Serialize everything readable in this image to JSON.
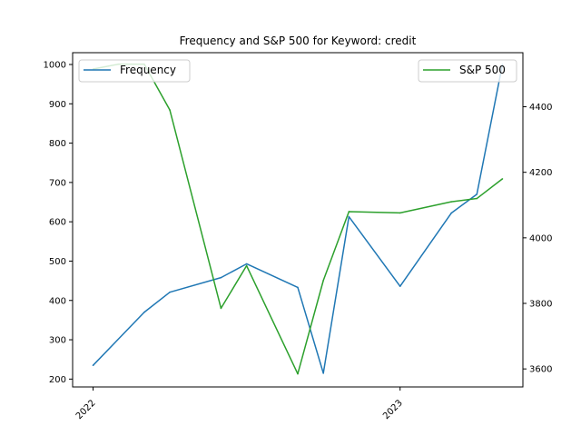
{
  "chart_data": {
    "type": "line",
    "title": "Frequency and S&P 500 for Keyword: credit",
    "xlabel": "",
    "ylabel": "",
    "x_ticks": [
      "2022",
      "2023"
    ],
    "x": [
      "2022-01",
      "2022-03",
      "2022-04",
      "2022-06",
      "2022-07",
      "2022-09",
      "2022-10",
      "2022-11",
      "2023-01",
      "2023-03",
      "2023-04",
      "2023-05"
    ],
    "ylim_left": [
      180,
      1030
    ],
    "ylim_right": [
      3545,
      4565
    ],
    "yticks_left": [
      200,
      300,
      400,
      500,
      600,
      700,
      800,
      900,
      1000
    ],
    "yticks_right": [
      3600,
      3800,
      4000,
      4200,
      4400
    ],
    "grid": false,
    "series": [
      {
        "name": "Frequency",
        "axis": "left",
        "color": "#1f77b4",
        "x": [
          "2022-01",
          "2022-03",
          "2022-04",
          "2022-06",
          "2022-07",
          "2022-09",
          "2022-10",
          "2022-11",
          "2023-01",
          "2023-03",
          "2023-04",
          "2023-05"
        ],
        "values": [
          235,
          370,
          421,
          458,
          493,
          433,
          215,
          613,
          436,
          622,
          670,
          1000
        ]
      },
      {
        "name": "S&P 500",
        "axis": "right",
        "color": "#2ca02c",
        "x": [
          "2022-01",
          "2022-02",
          "2022-03",
          "2022-04",
          "2022-06",
          "2022-07",
          "2022-09",
          "2022-10",
          "2022-11",
          "2023-01",
          "2023-03",
          "2023-04",
          "2023-05"
        ],
        "values": [
          4515,
          4530,
          4530,
          4390,
          3785,
          3915,
          3585,
          3870,
          4080,
          4076,
          4110,
          4120,
          4180
        ]
      }
    ],
    "legends": [
      {
        "placement": "upper-left",
        "entries": [
          "Frequency"
        ]
      },
      {
        "placement": "upper-right",
        "entries": [
          "S&P 500"
        ]
      }
    ]
  }
}
